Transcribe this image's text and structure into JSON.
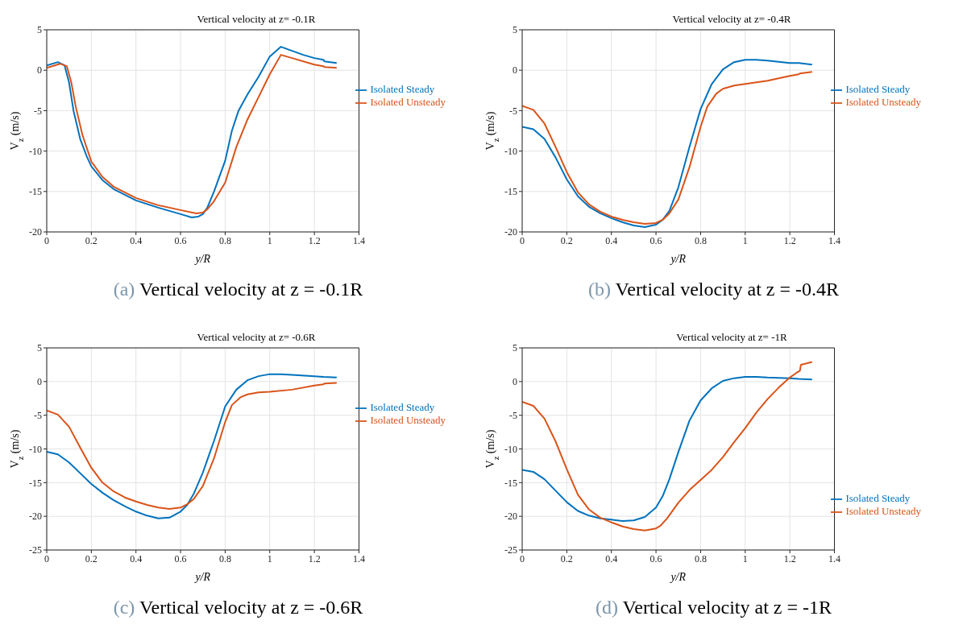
{
  "chart_data": [
    {
      "type": "line",
      "title": "Vertical velocity at z= -0.1R",
      "xlabel": "y/R",
      "ylabel": "V$_{z}$ (m/s)",
      "annotations": [
        "(a) Vertical velocity at z = -0.1R"
      ],
      "xlim": [
        0,
        1.4
      ],
      "xticks": [
        0,
        0.2,
        0.4,
        0.6,
        0.8,
        1,
        1.2,
        1.4
      ],
      "ylim": [
        -20,
        5
      ],
      "yticks": [
        -20,
        -15,
        -10,
        -5,
        0,
        5
      ],
      "grid": true,
      "legend": "right",
      "line_style": "solid",
      "marker": "none",
      "series": [
        {
          "name": "Isolated Steady",
          "color": "#0072bd",
          "x": [
            0,
            0.05,
            0.08,
            0.1,
            0.12,
            0.15,
            0.18,
            0.2,
            0.25,
            0.3,
            0.4,
            0.5,
            0.6,
            0.65,
            0.68,
            0.7,
            0.72,
            0.75,
            0.8,
            0.83,
            0.86,
            0.9,
            0.95,
            1.0,
            1.05,
            1.1,
            1.15,
            1.2,
            1.24,
            1.245,
            1.3
          ],
          "values": [
            0.6,
            1.0,
            0.6,
            -1.5,
            -5,
            -8.5,
            -10.7,
            -11.9,
            -13.6,
            -14.7,
            -16.1,
            -17,
            -17.8,
            -18.2,
            -18.1,
            -17.8,
            -17,
            -15,
            -11.2,
            -7.5,
            -5,
            -3,
            -0.8,
            1.7,
            2.9,
            2.4,
            1.9,
            1.5,
            1.3,
            1.1,
            0.9
          ]
        },
        {
          "name": "Isolated Unsteady",
          "color": "#d95319",
          "x": [
            0,
            0.06,
            0.09,
            0.11,
            0.13,
            0.16,
            0.2,
            0.25,
            0.3,
            0.4,
            0.5,
            0.6,
            0.67,
            0.7,
            0.72,
            0.75,
            0.8,
            0.85,
            0.9,
            0.95,
            1.0,
            1.05,
            1.1,
            1.2,
            1.24,
            1.245,
            1.3
          ],
          "values": [
            0.3,
            0.8,
            0.5,
            -1.5,
            -4.5,
            -8,
            -11.3,
            -13.2,
            -14.4,
            -15.8,
            -16.7,
            -17.3,
            -17.7,
            -17.6,
            -17.2,
            -16.2,
            -13.9,
            -9.5,
            -6.1,
            -3.3,
            -0.5,
            1.9,
            1.5,
            0.7,
            0.5,
            0.4,
            0.3
          ]
        }
      ]
    },
    {
      "type": "line",
      "title": "Vertical velocity at z= -0.4R",
      "xlabel": "y/R",
      "ylabel": "V$_{z}$ (m/s)",
      "annotations": [
        "(b) Vertical velocity at z = -0.4R"
      ],
      "xlim": [
        0,
        1.4
      ],
      "xticks": [
        0,
        0.2,
        0.4,
        0.6,
        0.8,
        1,
        1.2,
        1.4
      ],
      "ylim": [
        -20,
        5
      ],
      "yticks": [
        -20,
        -15,
        -10,
        -5,
        0,
        5
      ],
      "grid": true,
      "legend": "right",
      "line_style": "solid",
      "marker": "none",
      "series": [
        {
          "name": "Isolated Steady",
          "color": "#0072bd",
          "x": [
            0,
            0.05,
            0.1,
            0.15,
            0.2,
            0.25,
            0.3,
            0.35,
            0.4,
            0.45,
            0.5,
            0.55,
            0.6,
            0.63,
            0.66,
            0.7,
            0.75,
            0.8,
            0.85,
            0.9,
            0.95,
            1.0,
            1.05,
            1.1,
            1.2,
            1.24,
            1.3
          ],
          "values": [
            -7.0,
            -7.3,
            -8.5,
            -10.8,
            -13.5,
            -15.6,
            -16.9,
            -17.7,
            -18.3,
            -18.8,
            -19.2,
            -19.4,
            -19.1,
            -18.5,
            -17.4,
            -14.5,
            -9.5,
            -4.8,
            -1.7,
            0.1,
            1,
            1.3,
            1.3,
            1.2,
            0.9,
            0.9,
            0.7
          ]
        },
        {
          "name": "Isolated Unsteady",
          "color": "#d95319",
          "x": [
            0,
            0.05,
            0.1,
            0.15,
            0.2,
            0.25,
            0.3,
            0.35,
            0.4,
            0.45,
            0.5,
            0.55,
            0.6,
            0.63,
            0.66,
            0.7,
            0.75,
            0.8,
            0.83,
            0.87,
            0.9,
            0.95,
            1.0,
            1.1,
            1.2,
            1.24,
            1.245,
            1.3
          ],
          "values": [
            -4.4,
            -4.9,
            -6.6,
            -9.5,
            -12.6,
            -15.1,
            -16.6,
            -17.5,
            -18.1,
            -18.5,
            -18.8,
            -19.0,
            -18.9,
            -18.5,
            -17.7,
            -16,
            -12,
            -7,
            -4.5,
            -2.9,
            -2.3,
            -1.9,
            -1.7,
            -1.3,
            -0.7,
            -0.5,
            -0.4,
            -0.2
          ]
        }
      ]
    },
    {
      "type": "line",
      "title": "Vertical velocity at z= -0.6R",
      "xlabel": "y/R",
      "ylabel": "V$_{z}$ (m/s)",
      "annotations": [
        "(c) Vertical velocity at z = -0.6R"
      ],
      "xlim": [
        0,
        1.4
      ],
      "xticks": [
        0,
        0.2,
        0.4,
        0.6,
        0.8,
        1,
        1.2,
        1.4
      ],
      "ylim": [
        -25,
        5
      ],
      "yticks": [
        -25,
        -20,
        -15,
        -10,
        -5,
        0,
        5
      ],
      "grid": true,
      "legend": "right",
      "line_style": "solid",
      "marker": "none",
      "series": [
        {
          "name": "Isolated Steady",
          "color": "#0072bd",
          "x": [
            0,
            0.05,
            0.1,
            0.15,
            0.2,
            0.25,
            0.3,
            0.35,
            0.4,
            0.45,
            0.5,
            0.55,
            0.6,
            0.63,
            0.66,
            0.7,
            0.75,
            0.8,
            0.85,
            0.9,
            0.95,
            1.0,
            1.05,
            1.1,
            1.2,
            1.24,
            1.3
          ],
          "values": [
            -10.4,
            -10.8,
            -12,
            -13.6,
            -15.2,
            -16.5,
            -17.6,
            -18.5,
            -19.3,
            -19.9,
            -20.3,
            -20.2,
            -19.3,
            -18.3,
            -16.6,
            -13.5,
            -8.8,
            -3.7,
            -1.2,
            0.2,
            0.8,
            1.1,
            1.1,
            1.0,
            0.8,
            0.7,
            0.6
          ]
        },
        {
          "name": "Isolated Unsteady",
          "color": "#d95319",
          "x": [
            0,
            0.05,
            0.1,
            0.15,
            0.2,
            0.25,
            0.3,
            0.35,
            0.4,
            0.45,
            0.5,
            0.55,
            0.6,
            0.63,
            0.66,
            0.7,
            0.75,
            0.8,
            0.83,
            0.87,
            0.9,
            0.95,
            1.0,
            1.1,
            1.2,
            1.24,
            1.245,
            1.3
          ],
          "values": [
            -4.3,
            -4.9,
            -6.7,
            -9.8,
            -12.8,
            -15,
            -16.3,
            -17.2,
            -17.8,
            -18.3,
            -18.7,
            -18.9,
            -18.7,
            -18.2,
            -17.4,
            -15.5,
            -11.4,
            -6,
            -3.5,
            -2.3,
            -1.9,
            -1.6,
            -1.5,
            -1.2,
            -0.6,
            -0.4,
            -0.3,
            -0.2
          ]
        }
      ]
    },
    {
      "type": "line",
      "title": "Vertical velocity at z= -1R",
      "xlabel": "y/R",
      "ylabel": "V$_{z}$ (m/s)",
      "annotations": [
        "(d) Vertical velocity at z = -1R"
      ],
      "xlim": [
        0,
        1.4
      ],
      "xticks": [
        0,
        0.2,
        0.4,
        0.6,
        0.8,
        1,
        1.2,
        1.4
      ],
      "ylim": [
        -25,
        5
      ],
      "yticks": [
        -25,
        -20,
        -15,
        -10,
        -5,
        0,
        5
      ],
      "grid": true,
      "legend": "bottom right",
      "line_style": "solid",
      "marker": "none",
      "series": [
        {
          "name": "Isolated Steady",
          "color": "#0072bd",
          "x": [
            0,
            0.05,
            0.1,
            0.15,
            0.2,
            0.25,
            0.3,
            0.35,
            0.4,
            0.45,
            0.5,
            0.55,
            0.6,
            0.63,
            0.66,
            0.7,
            0.75,
            0.8,
            0.85,
            0.9,
            0.95,
            1.0,
            1.05,
            1.1,
            1.2,
            1.24,
            1.3
          ],
          "values": [
            -13.1,
            -13.4,
            -14.5,
            -16.2,
            -17.9,
            -19.2,
            -19.9,
            -20.3,
            -20.5,
            -20.7,
            -20.6,
            -20.1,
            -18.7,
            -17.0,
            -14.5,
            -10.5,
            -5.8,
            -2.8,
            -1,
            0.1,
            0.5,
            0.7,
            0.7,
            0.6,
            0.5,
            0.4,
            0.3
          ]
        },
        {
          "name": "Isolated Unsteady",
          "color": "#d95319",
          "x": [
            0,
            0.05,
            0.1,
            0.15,
            0.2,
            0.25,
            0.3,
            0.35,
            0.4,
            0.45,
            0.5,
            0.55,
            0.6,
            0.62,
            0.65,
            0.7,
            0.75,
            0.8,
            0.85,
            0.9,
            0.95,
            1.0,
            1.05,
            1.1,
            1.15,
            1.2,
            1.23,
            1.245,
            1.25,
            1.3
          ],
          "values": [
            -3.0,
            -3.6,
            -5.5,
            -8.9,
            -13,
            -16.8,
            -19,
            -20.2,
            -20.9,
            -21.5,
            -21.9,
            -22.1,
            -21.8,
            -21.4,
            -20.3,
            -18,
            -16.1,
            -14.6,
            -13.1,
            -11.2,
            -9.0,
            -6.9,
            -4.6,
            -2.6,
            -0.9,
            0.6,
            1.3,
            1.6,
            2.5,
            2.9
          ]
        }
      ]
    }
  ]
}
